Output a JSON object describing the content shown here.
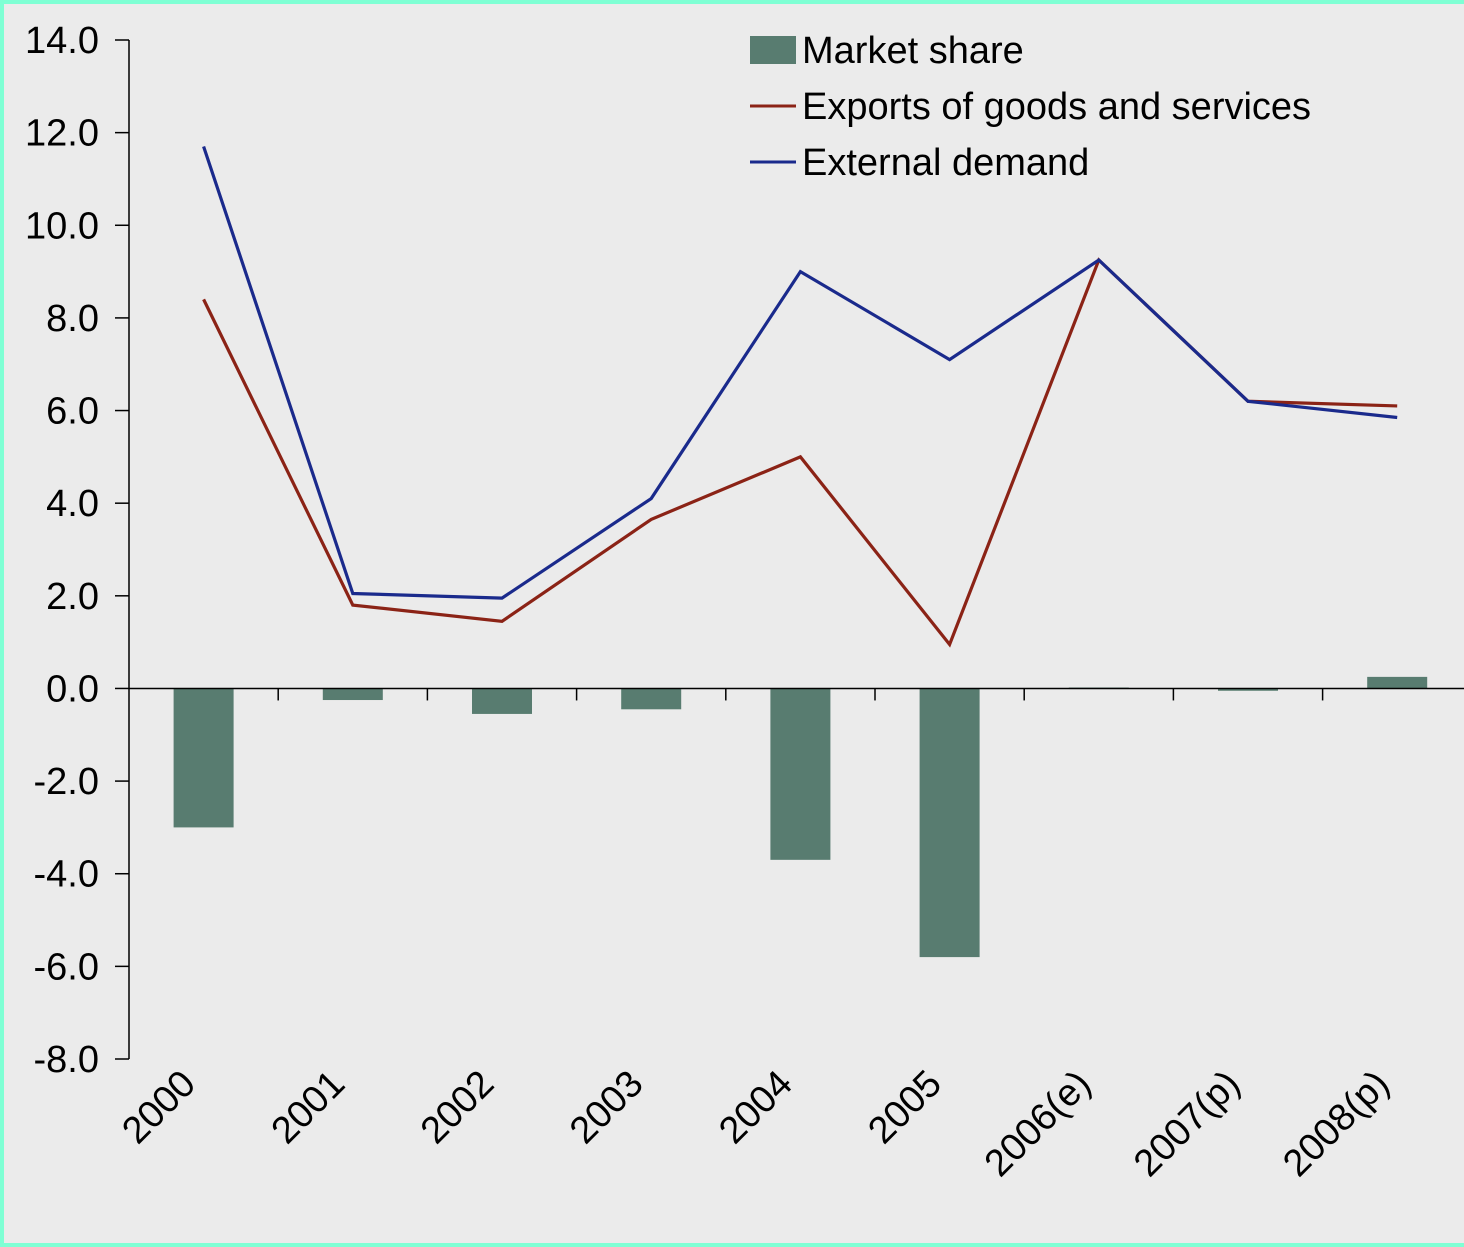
{
  "chart_data": {
    "type": "bar",
    "categories": [
      "2000",
      "2001",
      "2002",
      "2003",
      "2004",
      "2005",
      "2006(e)",
      "2007(p)",
      "2008(p)"
    ],
    "ylim": [
      -8.0,
      14.0
    ],
    "yticks": [
      "14.0",
      "12.0",
      "10.0",
      "8.0",
      "6.0",
      "4.0",
      "2.0",
      "0.0",
      "-2.0",
      "-4.0",
      "-6.0",
      "-8.0"
    ],
    "legend_position": "top-right",
    "series": [
      {
        "name": "Market share",
        "kind": "bar",
        "color": "#587c70",
        "values": [
          -3.0,
          -0.25,
          -0.55,
          -0.45,
          -3.7,
          -5.8,
          0.02,
          -0.05,
          0.25
        ]
      },
      {
        "name": "Exports of goods and services",
        "kind": "line",
        "color": "#8b2316",
        "values": [
          8.4,
          1.8,
          1.45,
          3.65,
          5.0,
          0.95,
          9.25,
          6.2,
          6.1
        ]
      },
      {
        "name": "External demand",
        "kind": "line",
        "color": "#1a2a8c",
        "values": [
          11.7,
          2.05,
          1.95,
          4.1,
          9.0,
          7.1,
          9.25,
          6.2,
          5.85
        ]
      }
    ]
  }
}
